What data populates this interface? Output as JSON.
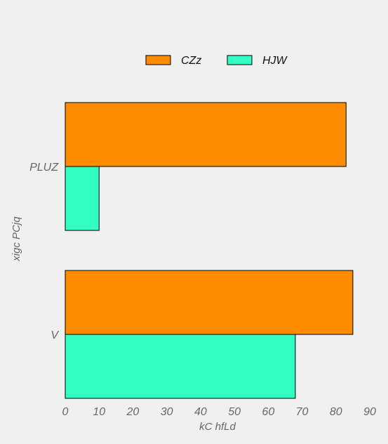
{
  "chart_data": {
    "type": "bar",
    "orientation": "horizontal",
    "title": "",
    "xlabel": "kC hfLd",
    "ylabel": "xigc PCjq",
    "categories": [
      "PLUZ",
      "V"
    ],
    "series": [
      {
        "name": "CZz",
        "values": [
          83,
          85
        ],
        "color": "#ff8c00"
      },
      {
        "name": "HJW",
        "values": [
          10,
          68
        ],
        "color": "#33ffc4"
      }
    ],
    "xlim": [
      0,
      90
    ],
    "xticks": [
      0,
      10,
      20,
      30,
      40,
      50,
      60,
      70,
      80,
      90
    ],
    "grid": false,
    "legend_position": "top"
  },
  "colors": {
    "background": "#f0f0f0",
    "bar_edge": "#000000",
    "text": "#666666"
  }
}
